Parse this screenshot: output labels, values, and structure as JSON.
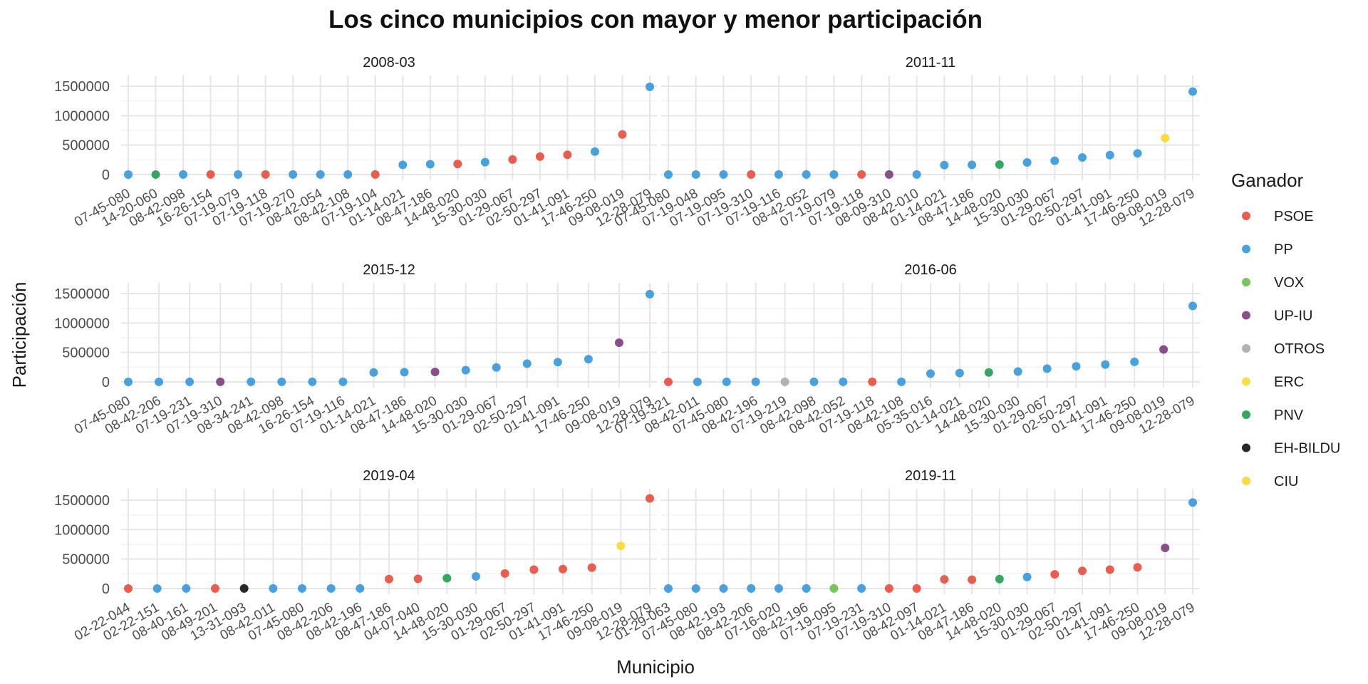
{
  "title": "Los cinco municipios con mayor y menor participación",
  "chart_data": {
    "type": "scatter",
    "title": "Los cinco municipios con mayor y menor participación",
    "xlabel": "Municipio",
    "ylabel": "Participación",
    "ylim": [
      0,
      1550000
    ],
    "y_ticks": [
      "0",
      "500000",
      "1000000",
      "1500000"
    ],
    "y_tick_values": [
      0,
      500000,
      1000000,
      1500000
    ],
    "grid": true,
    "legend": {
      "title": "Ganador",
      "placement": "right",
      "entries": [
        {
          "name": "PSOE",
          "color": "#e74c3c"
        },
        {
          "name": "PP",
          "color": "#3498db"
        },
        {
          "name": "VOX",
          "color": "#6abf4b"
        },
        {
          "name": "UP-IU",
          "color": "#7d3c7d"
        },
        {
          "name": "OTROS",
          "color": "#aaaaaa"
        },
        {
          "name": "ERC",
          "color": "#f7dc2c"
        },
        {
          "name": "PNV",
          "color": "#1f9e4f"
        },
        {
          "name": "EH-BILDU",
          "color": "#111111"
        },
        {
          "name": "CIU",
          "color": "#fcd72a"
        }
      ]
    },
    "facets": [
      {
        "label": "2008-03",
        "categories": [
          "07-45-080",
          "14-20-060",
          "08-42-098",
          "16-26-154",
          "07-19-079",
          "07-19-118",
          "07-19-270",
          "08-42-054",
          "08-42-108",
          "07-19-104",
          "01-14-021",
          "08-47-186",
          "14-48-020",
          "15-30-030",
          "01-29-067",
          "02-50-297",
          "01-41-091",
          "17-46-250",
          "09-08-019",
          "12-28-079"
        ],
        "values": [
          600,
          700,
          800,
          900,
          1000,
          1100,
          1200,
          1300,
          1400,
          1500,
          165000,
          175000,
          180000,
          210000,
          255000,
          305000,
          335000,
          390000,
          680000,
          1490000
        ],
        "winners": [
          "PP",
          "PNV",
          "PP",
          "PSOE",
          "PP",
          "PSOE",
          "PP",
          "PP",
          "PP",
          "PSOE",
          "PP",
          "PP",
          "PSOE",
          "PP",
          "PSOE",
          "PSOE",
          "PSOE",
          "PP",
          "PSOE",
          "PP"
        ]
      },
      {
        "label": "2011-11",
        "categories": [
          "07-45-080",
          "07-19-048",
          "07-19-095",
          "07-19-310",
          "07-19-116",
          "08-42-052",
          "07-19-079",
          "07-19-118",
          "08-09-310",
          "08-42-010",
          "01-14-021",
          "08-47-186",
          "14-48-020",
          "15-30-030",
          "01-29-067",
          "02-50-297",
          "01-41-091",
          "17-46-250",
          "09-08-019",
          "12-28-079"
        ],
        "values": [
          600,
          700,
          800,
          900,
          1000,
          1100,
          1200,
          1300,
          1400,
          1500,
          160000,
          165000,
          170000,
          205000,
          235000,
          290000,
          330000,
          360000,
          620000,
          1410000
        ],
        "winners": [
          "PP",
          "PP",
          "PP",
          "PSOE",
          "PP",
          "PP",
          "PP",
          "PSOE",
          "UP-IU",
          "PP",
          "PP",
          "PP",
          "PNV",
          "PP",
          "PP",
          "PP",
          "PP",
          "PP",
          "CIU",
          "PP"
        ]
      },
      {
        "label": "2015-12",
        "categories": [
          "07-45-080",
          "08-42-206",
          "07-19-231",
          "07-19-310",
          "08-34-241",
          "08-42-098",
          "16-26-154",
          "07-19-116",
          "01-14-021",
          "08-47-186",
          "14-48-020",
          "15-30-030",
          "01-29-067",
          "02-50-297",
          "01-41-091",
          "17-46-250",
          "09-08-019",
          "12-28-079"
        ],
        "values": [
          600,
          700,
          800,
          900,
          1000,
          1100,
          1200,
          1300,
          160000,
          165000,
          170000,
          200000,
          245000,
          310000,
          335000,
          385000,
          665000,
          1490000
        ],
        "winners": [
          "PP",
          "PP",
          "PP",
          "UP-IU",
          "PP",
          "PP",
          "PP",
          "PP",
          "PP",
          "PP",
          "UP-IU",
          "PP",
          "PP",
          "PP",
          "PP",
          "PP",
          "UP-IU",
          "PP"
        ]
      },
      {
        "label": "2016-06",
        "categories": [
          "07-19-321",
          "08-42-011",
          "07-45-080",
          "08-42-196",
          "07-19-219",
          "08-42-098",
          "08-42-052",
          "07-19-118",
          "08-42-108",
          "05-35-016",
          "01-14-021",
          "14-48-020",
          "15-30-030",
          "01-29-067",
          "02-50-297",
          "01-41-091",
          "17-46-250",
          "09-08-019",
          "12-28-079"
        ],
        "values": [
          600,
          700,
          800,
          900,
          1000,
          1100,
          1200,
          1300,
          1400,
          140000,
          150000,
          160000,
          175000,
          225000,
          265000,
          295000,
          340000,
          550000,
          1290000
        ],
        "winners": [
          "PSOE",
          "PP",
          "PP",
          "PP",
          "OTROS",
          "PP",
          "PP",
          "PSOE",
          "PP",
          "PP",
          "PP",
          "PNV",
          "PP",
          "PP",
          "PP",
          "PP",
          "PP",
          "UP-IU",
          "PP"
        ]
      },
      {
        "label": "2019-04",
        "categories": [
          "02-22-044",
          "02-22-151",
          "08-40-161",
          "08-49-201",
          "13-31-093",
          "08-42-011",
          "07-45-080",
          "08-42-206",
          "08-42-196",
          "08-47-186",
          "04-07-040",
          "14-48-020",
          "15-30-030",
          "01-29-067",
          "02-50-297",
          "01-41-091",
          "17-46-250",
          "09-08-019",
          "12-28-079"
        ],
        "values": [
          600,
          700,
          800,
          900,
          1000,
          1100,
          1200,
          1300,
          1400,
          160000,
          165000,
          175000,
          205000,
          255000,
          320000,
          330000,
          355000,
          725000,
          1530000
        ],
        "winners": [
          "PSOE",
          "PP",
          "PP",
          "PSOE",
          "EH-BILDU",
          "PP",
          "PP",
          "PP",
          "PP",
          "PSOE",
          "PSOE",
          "PNV",
          "PP",
          "PSOE",
          "PSOE",
          "PSOE",
          "PSOE",
          "ERC",
          "PSOE"
        ]
      },
      {
        "label": "2019-11",
        "categories": [
          "01-29-063",
          "07-45-080",
          "08-42-193",
          "08-42-206",
          "07-16-020",
          "08-42-196",
          "07-19-095",
          "07-19-231",
          "07-19-310",
          "08-42-097",
          "01-14-021",
          "08-47-186",
          "14-48-020",
          "15-30-030",
          "01-29-067",
          "02-50-297",
          "01-41-091",
          "17-46-250",
          "09-08-019",
          "12-28-079"
        ],
        "values": [
          600,
          700,
          800,
          900,
          1000,
          1100,
          1200,
          1300,
          1400,
          1500,
          155000,
          150000,
          160000,
          195000,
          240000,
          300000,
          320000,
          360000,
          690000,
          1460000
        ],
        "winners": [
          "PP",
          "PP",
          "PP",
          "PP",
          "PP",
          "PP",
          "VOX",
          "PP",
          "PSOE",
          "PSOE",
          "PSOE",
          "PSOE",
          "PNV",
          "PP",
          "PSOE",
          "PSOE",
          "PSOE",
          "PSOE",
          "UP-IU",
          "PP"
        ]
      }
    ]
  }
}
